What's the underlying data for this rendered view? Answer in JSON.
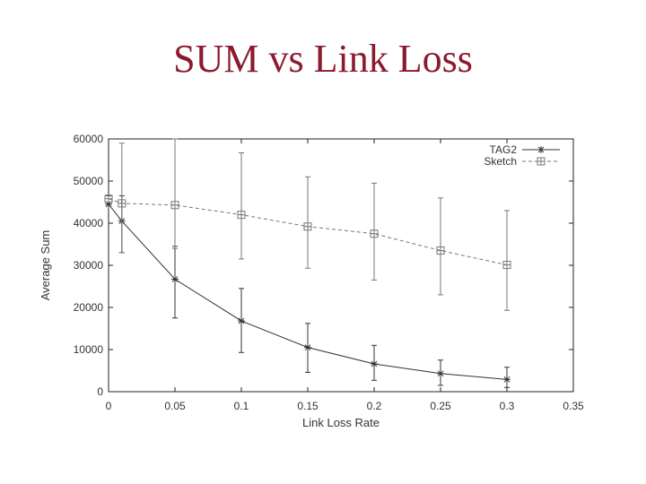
{
  "slide": {
    "title": "SUM vs Link Loss"
  },
  "chart_data": {
    "type": "line",
    "title": "",
    "xlabel": "Link Loss Rate",
    "ylabel": "Average Sum",
    "xlim": [
      0,
      0.35
    ],
    "ylim": [
      0,
      60000
    ],
    "xticks": [
      0,
      0.05,
      0.1,
      0.15,
      0.2,
      0.25,
      0.3,
      0.35
    ],
    "xtick_labels": [
      "0",
      "0.05",
      "0.1",
      "0.15",
      "0.2",
      "0.25",
      "0.3",
      "0.35"
    ],
    "yticks": [
      0,
      10000,
      20000,
      30000,
      40000,
      50000,
      60000
    ],
    "ytick_labels": [
      "0",
      "10000",
      "20000",
      "30000",
      "40000",
      "50000",
      "60000"
    ],
    "grid": false,
    "legend_position": "top-right",
    "series": [
      {
        "name": "TAG2",
        "marker": "plus",
        "line_style": "solid",
        "color": "#333333",
        "x": [
          0,
          0.01,
          0.05,
          0.1,
          0.15,
          0.2,
          0.25,
          0.3
        ],
        "y": [
          44500,
          40500,
          26700,
          16800,
          10500,
          6600,
          4300,
          2900
        ],
        "y_err_low": [
          44500,
          33000,
          17500,
          9300,
          4600,
          2700,
          1500,
          1000
        ],
        "y_err_high": [
          46500,
          46500,
          34500,
          24500,
          16200,
          11000,
          7500,
          5800
        ]
      },
      {
        "name": "Sketch",
        "marker": "boxed-star",
        "line_style": "dashed",
        "color": "#777777",
        "x": [
          0,
          0.01,
          0.05,
          0.1,
          0.15,
          0.2,
          0.25,
          0.3
        ],
        "y": [
          45800,
          44700,
          44300,
          42000,
          39200,
          37500,
          33500,
          30100
        ],
        "y_err_low": [
          45800,
          33000,
          34000,
          31500,
          29300,
          26500,
          23000,
          19300
        ],
        "y_err_high": [
          45800,
          59000,
          60000,
          56700,
          51000,
          49500,
          46000,
          43000
        ]
      }
    ]
  }
}
